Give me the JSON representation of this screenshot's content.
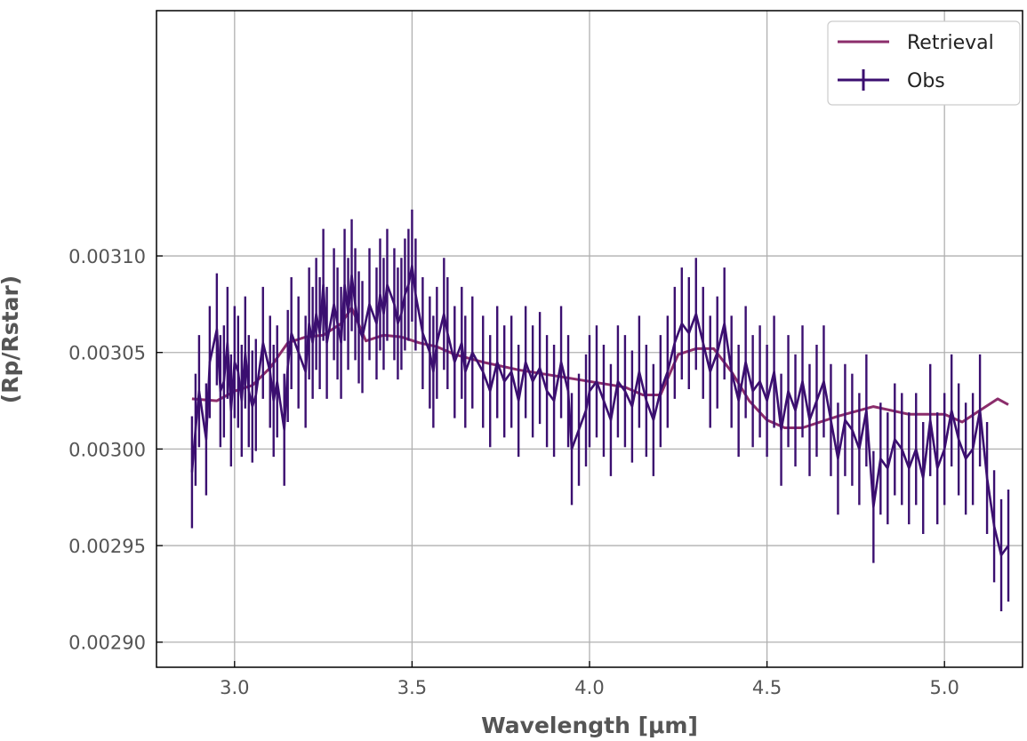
{
  "chart_data": {
    "type": "line",
    "xlabel": "Wavelength [μm]",
    "ylabel": "(Rp/Rstar)",
    "xlim": [
      2.78,
      5.22
    ],
    "ylim": [
      0.002887,
      0.003227
    ],
    "xticks": [
      "3.0",
      "3.5",
      "4.0",
      "4.5",
      "5.0"
    ],
    "yticks": [
      "0.00310",
      "0.00305",
      "0.00300",
      "0.00295",
      "0.00290"
    ],
    "grid": true,
    "legend": {
      "placement": "top-right",
      "entries": [
        "Retrieval",
        "Obs"
      ]
    },
    "series": [
      {
        "name": "Retrieval",
        "color": "#8b2d6b",
        "x": [
          2.88,
          2.95,
          3.0,
          3.05,
          3.1,
          3.15,
          3.2,
          3.25,
          3.3,
          3.33,
          3.37,
          3.42,
          3.47,
          3.52,
          3.57,
          3.62,
          3.7,
          3.8,
          3.9,
          4.0,
          4.1,
          4.15,
          4.2,
          4.25,
          4.3,
          4.35,
          4.4,
          4.45,
          4.5,
          4.55,
          4.6,
          4.7,
          4.8,
          4.9,
          5.0,
          5.05,
          5.1,
          5.15,
          5.18
        ],
        "values": [
          0.003026,
          0.003025,
          0.00303,
          0.003033,
          0.003042,
          0.003055,
          0.003058,
          0.003059,
          0.003065,
          0.003073,
          0.003056,
          0.003059,
          0.003058,
          0.003055,
          0.003053,
          0.003049,
          0.003045,
          0.003041,
          0.003038,
          0.003035,
          0.003032,
          0.003028,
          0.003028,
          0.003049,
          0.003052,
          0.003052,
          0.00304,
          0.003025,
          0.003015,
          0.003011,
          0.003011,
          0.003017,
          0.003022,
          0.003018,
          0.003018,
          0.003014,
          0.00302,
          0.003026,
          0.003023
        ]
      },
      {
        "name": "Obs",
        "color": "#3b0f70",
        "error_bar": 2.9e-05,
        "x": [
          2.88,
          2.89,
          2.9,
          2.92,
          2.93,
          2.95,
          2.96,
          2.97,
          2.98,
          2.99,
          3.0,
          3.01,
          3.02,
          3.03,
          3.04,
          3.05,
          3.06,
          3.08,
          3.1,
          3.11,
          3.12,
          3.14,
          3.15,
          3.16,
          3.18,
          3.2,
          3.21,
          3.22,
          3.23,
          3.24,
          3.25,
          3.26,
          3.28,
          3.29,
          3.3,
          3.31,
          3.32,
          3.33,
          3.34,
          3.35,
          3.36,
          3.38,
          3.4,
          3.41,
          3.42,
          3.43,
          3.45,
          3.46,
          3.47,
          3.48,
          3.49,
          3.5,
          3.51,
          3.53,
          3.55,
          3.56,
          3.57,
          3.59,
          3.6,
          3.62,
          3.64,
          3.65,
          3.67,
          3.7,
          3.72,
          3.74,
          3.76,
          3.78,
          3.8,
          3.82,
          3.84,
          3.86,
          3.88,
          3.9,
          3.92,
          3.94,
          3.95,
          3.97,
          3.99,
          4.0,
          4.02,
          4.04,
          4.06,
          4.08,
          4.1,
          4.12,
          4.14,
          4.16,
          4.18,
          4.2,
          4.22,
          4.24,
          4.26,
          4.28,
          4.3,
          4.32,
          4.34,
          4.36,
          4.38,
          4.4,
          4.42,
          4.44,
          4.46,
          4.48,
          4.5,
          4.52,
          4.54,
          4.56,
          4.58,
          4.6,
          4.62,
          4.64,
          4.66,
          4.68,
          4.7,
          4.72,
          4.74,
          4.76,
          4.78,
          4.8,
          4.82,
          4.84,
          4.86,
          4.88,
          4.9,
          4.92,
          4.94,
          4.96,
          4.98,
          5.0,
          5.02,
          5.04,
          5.06,
          5.08,
          5.1,
          5.12,
          5.14,
          5.16,
          5.18
        ],
        "values": [
          0.002988,
          0.00301,
          0.00303,
          0.003005,
          0.003045,
          0.003062,
          0.00303,
          0.003035,
          0.003055,
          0.00302,
          0.003045,
          0.00304,
          0.003025,
          0.00305,
          0.00303,
          0.003022,
          0.003028,
          0.003055,
          0.00304,
          0.003025,
          0.003035,
          0.00301,
          0.003043,
          0.00306,
          0.00305,
          0.00304,
          0.003065,
          0.003055,
          0.00307,
          0.00306,
          0.003085,
          0.003055,
          0.003075,
          0.003065,
          0.003055,
          0.003085,
          0.00307,
          0.00309,
          0.003075,
          0.003063,
          0.003058,
          0.003075,
          0.003065,
          0.00308,
          0.00307,
          0.003085,
          0.003075,
          0.003065,
          0.00307,
          0.00308,
          0.003085,
          0.003095,
          0.00308,
          0.00306,
          0.00305,
          0.00304,
          0.003055,
          0.00307,
          0.00306,
          0.003045,
          0.003055,
          0.00304,
          0.00305,
          0.00304,
          0.00303,
          0.003045,
          0.003035,
          0.00304,
          0.003025,
          0.003045,
          0.003035,
          0.003042,
          0.00303,
          0.003025,
          0.003045,
          0.00303,
          0.003,
          0.00301,
          0.00302,
          0.00303,
          0.003035,
          0.003025,
          0.003015,
          0.003035,
          0.00303,
          0.003022,
          0.00304,
          0.003025,
          0.003015,
          0.00303,
          0.00304,
          0.003055,
          0.003065,
          0.00306,
          0.00307,
          0.003055,
          0.00304,
          0.00305,
          0.003065,
          0.00304,
          0.003025,
          0.003045,
          0.00303,
          0.003035,
          0.003025,
          0.00304,
          0.00301,
          0.00303,
          0.00302,
          0.003035,
          0.003015,
          0.003025,
          0.003035,
          0.003015,
          0.002995,
          0.003015,
          0.00301,
          0.003,
          0.00302,
          0.00297,
          0.002995,
          0.00299,
          0.003005,
          0.003,
          0.00299,
          0.003,
          0.002985,
          0.003015,
          0.00299,
          0.003,
          0.00302,
          0.003005,
          0.002995,
          0.003,
          0.00302,
          0.002985,
          0.00296,
          0.002945,
          0.00295
        ]
      }
    ]
  }
}
